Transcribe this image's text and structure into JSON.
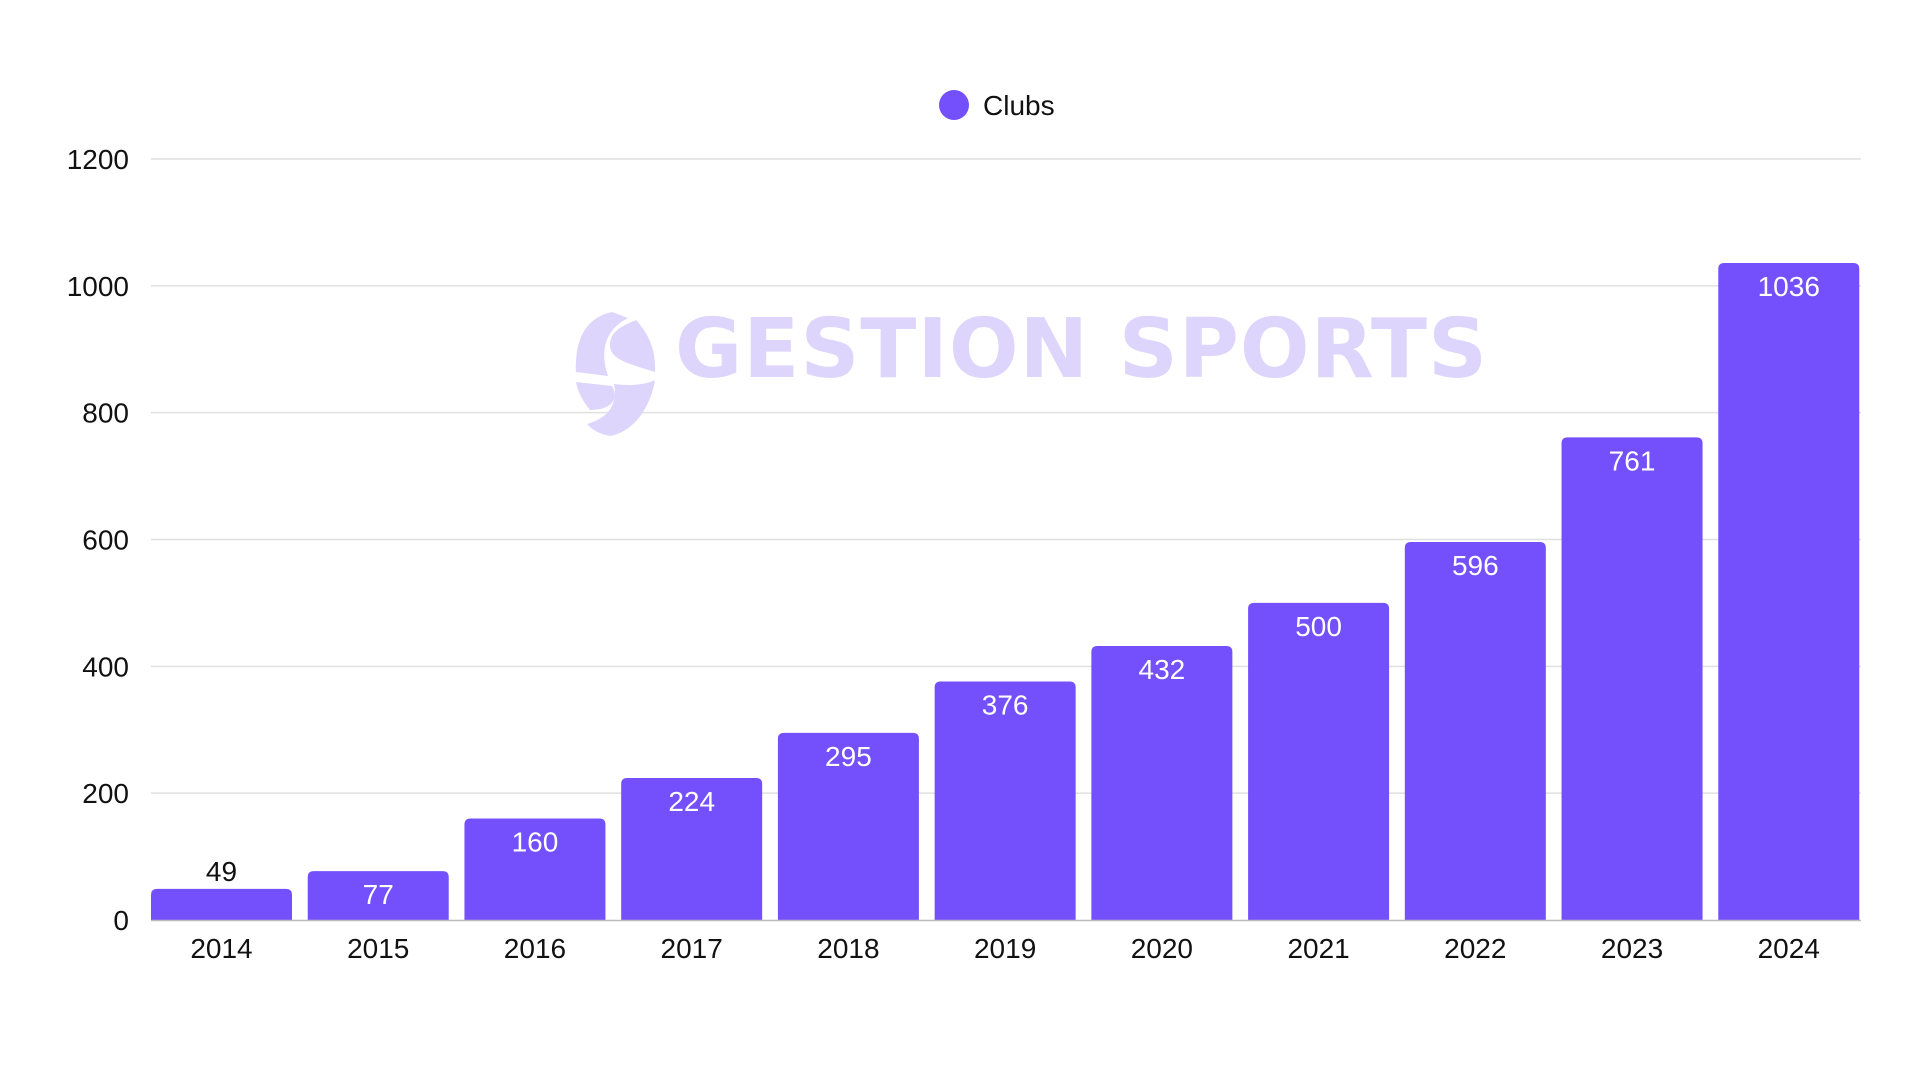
{
  "chart_data": {
    "type": "bar",
    "categories": [
      "2014",
      "2015",
      "2016",
      "2017",
      "2018",
      "2019",
      "2020",
      "2021",
      "2022",
      "2023",
      "2024"
    ],
    "series": [
      {
        "name": "Clubs",
        "values": [
          49,
          77,
          160,
          224,
          295,
          376,
          432,
          500,
          596,
          761,
          1036
        ],
        "color": "#7350FB"
      }
    ],
    "ylim": [
      0,
      1200
    ],
    "yticks": [
      0,
      200,
      400,
      600,
      800,
      1000,
      1200
    ],
    "grid": true,
    "legend_position": "top-center",
    "data_labels": true
  },
  "watermark": {
    "text": "GESTION SPORTS",
    "color": "#DDD5FB"
  }
}
